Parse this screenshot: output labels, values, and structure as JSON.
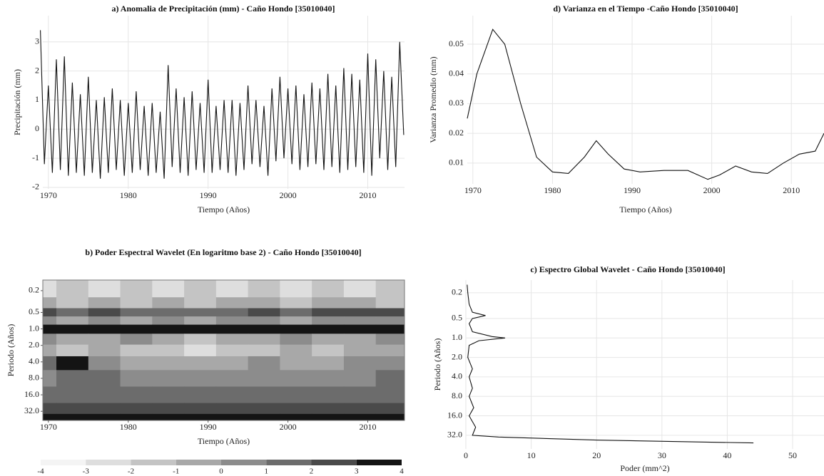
{
  "chart_data": [
    {
      "type": "line",
      "title": "a) Anomalia de Precipitación (mm) - Caño Hondo [35010040]",
      "xlabel": "Tiempo (Años)",
      "ylabel": "Precipitación (mm)",
      "color": "#111111",
      "grid": true,
      "xlim": [
        1969.3,
        2014.6
      ],
      "xticks": [
        1970,
        1980,
        1990,
        2000,
        2010
      ],
      "ylim": [
        -2.05,
        3.9
      ],
      "yticks": [
        -2,
        -1,
        0,
        1,
        2,
        3
      ],
      "x": [
        1969.0,
        1969.5,
        1970.0,
        1970.5,
        1971.0,
        1971.5,
        1972.0,
        1972.5,
        1973.0,
        1973.5,
        1974.0,
        1974.5,
        1975.0,
        1975.5,
        1976.0,
        1976.5,
        1977.0,
        1977.5,
        1978.0,
        1978.5,
        1979.0,
        1979.5,
        1980.0,
        1980.5,
        1981.0,
        1981.5,
        1982.0,
        1982.5,
        1983.0,
        1983.5,
        1984.0,
        1984.5,
        1985.0,
        1985.5,
        1986.0,
        1986.5,
        1987.0,
        1987.5,
        1988.0,
        1988.5,
        1989.0,
        1989.5,
        1990.0,
        1990.5,
        1991.0,
        1991.5,
        1992.0,
        1992.5,
        1993.0,
        1993.5,
        1994.0,
        1994.5,
        1995.0,
        1995.5,
        1996.0,
        1996.5,
        1997.0,
        1997.5,
        1998.0,
        1998.5,
        1999.0,
        1999.5,
        2000.0,
        2000.5,
        2001.0,
        2001.5,
        2002.0,
        2002.5,
        2003.0,
        2003.5,
        2004.0,
        2004.5,
        2005.0,
        2005.5,
        2006.0,
        2006.5,
        2007.0,
        2007.5,
        2008.0,
        2008.5,
        2009.0,
        2009.5,
        2010.0,
        2010.5,
        2011.0,
        2011.5,
        2012.0,
        2012.5,
        2013.0,
        2013.5,
        2014.0,
        2014.5
      ],
      "values": [
        3.4,
        -1.2,
        1.5,
        -1.5,
        2.4,
        -1.4,
        2.5,
        -1.6,
        1.6,
        -1.5,
        1.2,
        -1.6,
        1.8,
        -1.5,
        1.0,
        -1.7,
        1.1,
        -1.5,
        1.4,
        -1.4,
        1.0,
        -1.6,
        0.9,
        -1.5,
        1.3,
        -1.4,
        0.8,
        -1.6,
        0.9,
        -1.5,
        0.6,
        -1.7,
        2.2,
        -1.3,
        1.4,
        -1.5,
        1.1,
        -1.6,
        1.3,
        -1.4,
        0.9,
        -1.5,
        1.7,
        -1.5,
        0.8,
        -1.4,
        1.0,
        -1.5,
        1.0,
        -1.6,
        0.9,
        -1.4,
        1.5,
        -1.2,
        1.0,
        -1.3,
        0.8,
        -1.6,
        1.4,
        -1.1,
        1.8,
        -1.0,
        1.4,
        -1.2,
        1.5,
        -1.4,
        1.2,
        -1.3,
        1.6,
        -1.2,
        1.4,
        -1.4,
        1.9,
        -1.3,
        1.5,
        -1.5,
        2.1,
        -1.4,
        1.9,
        -1.3,
        1.7,
        -1.5,
        2.6,
        -1.6,
        2.4,
        -1.0,
        2.0,
        -1.4,
        1.8,
        -1.3,
        3.0,
        -0.2
      ]
    },
    {
      "type": "line",
      "title": "d) Varianza en el Tiempo -Caño Hondo [35010040]",
      "xlabel": "Tiempo (Años)",
      "ylabel": "Varianza Promedio (mm)",
      "color": "#111111",
      "grid": true,
      "xlim": [
        1969.3,
        2014.1
      ],
      "xticks": [
        1970,
        1980,
        1990,
        2000,
        2010
      ],
      "ylim": [
        0.003,
        0.0596
      ],
      "yticks": [
        0.01,
        0.02,
        0.03,
        0.04,
        0.05
      ],
      "x": [
        1969.3,
        1970.5,
        1972.5,
        1974,
        1976,
        1978,
        1980,
        1982,
        1984,
        1985.5,
        1987,
        1989,
        1991,
        1994,
        1997,
        1999.5,
        2001,
        2003,
        2005,
        2007,
        2009,
        2011,
        2013,
        2014.1
      ],
      "values": [
        0.025,
        0.04,
        0.055,
        0.05,
        0.03,
        0.012,
        0.007,
        0.0065,
        0.012,
        0.0175,
        0.013,
        0.008,
        0.007,
        0.0075,
        0.0075,
        0.0045,
        0.006,
        0.009,
        0.007,
        0.0065,
        0.01,
        0.013,
        0.014,
        0.02
      ]
    },
    {
      "type": "heatmap",
      "title": "b) Poder Espectral Wavelet (En logaritmo base 2) - Caño Hondo [35010040]",
      "xlabel": "Tiempo (Años)",
      "ylabel": "Periodo (Años)",
      "ylog": true,
      "yreverse": true,
      "xlim": [
        1969.3,
        2014.6
      ],
      "xticks": [
        1970,
        1980,
        1990,
        2000,
        2010
      ],
      "ylim": [
        0.128,
        47
      ],
      "yticks": [
        0.2,
        0.5,
        {
          "value": 1,
          "label": "1.0"
        },
        {
          "value": 2,
          "label": "2.0"
        },
        {
          "value": 4,
          "label": "4.0"
        },
        {
          "value": 8,
          "label": "8.0"
        },
        {
          "value": 16,
          "label": "16.0"
        },
        {
          "value": 32,
          "label": "32.0"
        }
      ],
      "x": [
        1969,
        1973,
        1977,
        1981,
        1985,
        1989,
        1993,
        1997,
        2001,
        2005,
        2009,
        2013
      ],
      "y": [
        0.2,
        0.35,
        0.5,
        0.7,
        1,
        1.5,
        2.5,
        4,
        8,
        16,
        32,
        40
      ],
      "z": [
        [
          -3,
          -2,
          -3,
          -2,
          -3,
          -2,
          -3,
          -2,
          -3,
          -2,
          -3,
          -2
        ],
        [
          -1,
          -2,
          -1,
          -2,
          -1,
          -2,
          -1,
          -1,
          -2,
          -1,
          -1,
          -2
        ],
        [
          2,
          1,
          2,
          1,
          1,
          1,
          1,
          2,
          1,
          2,
          2,
          2
        ],
        [
          0,
          -1,
          0,
          -1,
          0,
          -1,
          0,
          0,
          -1,
          0,
          0,
          0
        ],
        [
          3,
          3,
          3,
          3,
          3,
          3,
          3,
          3,
          3,
          3,
          3,
          3
        ],
        [
          0,
          -1,
          -1,
          0,
          -1,
          -2,
          -1,
          -1,
          0,
          -1,
          -1,
          0
        ],
        [
          -1,
          -2,
          -1,
          -2,
          -2,
          -3,
          -2,
          -2,
          -1,
          -2,
          -1,
          -1
        ],
        [
          1,
          3,
          0,
          -1,
          -1,
          -1,
          -1,
          0,
          -1,
          -1,
          0,
          0
        ],
        [
          0,
          1,
          1,
          0,
          0,
          0,
          0,
          0,
          0,
          0,
          0,
          1
        ],
        [
          1,
          1,
          1,
          1,
          1,
          1,
          1,
          1,
          1,
          1,
          1,
          1
        ],
        [
          2,
          2,
          2,
          2,
          2,
          2,
          2,
          2,
          2,
          2,
          2,
          2
        ],
        [
          4,
          4,
          4,
          4,
          4,
          4,
          4,
          4,
          4,
          4,
          4,
          4
        ]
      ],
      "colorbar_ticks": [
        -4,
        -3,
        -2,
        -1,
        0,
        1,
        2,
        3,
        4
      ],
      "colormap": [
        "#f4f4f4",
        "#dedede",
        "#c4c4c4",
        "#a8a8a8",
        "#8c8c8c",
        "#6c6c6c",
        "#4a4a4a",
        "#141414"
      ]
    },
    {
      "type": "profile",
      "title": "c) Espectro Global Wavelet - Caño Hondo [35010040]",
      "xlabel": "Poder (mm^2)",
      "ylabel": "Periodo (Años)",
      "color": "#111111",
      "grid": true,
      "ylog": true,
      "yreverse": true,
      "xlim": [
        0,
        54.8
      ],
      "xticks": [
        0,
        10,
        20,
        30,
        40,
        50
      ],
      "ylim": [
        0.127,
        52
      ],
      "yticks": [
        0.2,
        0.5,
        {
          "value": 1,
          "label": "1.0"
        },
        {
          "value": 2,
          "label": "2.0"
        },
        {
          "value": 4,
          "label": "4.0"
        },
        {
          "value": 8,
          "label": "8.0"
        },
        {
          "value": 16,
          "label": "16.0"
        },
        {
          "value": 32,
          "label": "32.0"
        }
      ],
      "periods": [
        0.15,
        0.2,
        0.3,
        0.4,
        0.45,
        0.5,
        0.6,
        0.8,
        0.95,
        1.0,
        1.1,
        1.3,
        2,
        3,
        4,
        6,
        8,
        12,
        16,
        24,
        32,
        34,
        38,
        42
      ],
      "values": [
        0.2,
        0.3,
        0.5,
        1,
        3,
        1,
        0.5,
        1,
        4,
        6,
        2,
        0.5,
        0.3,
        1,
        0.5,
        1,
        0.5,
        1.2,
        0.5,
        1.5,
        1,
        5,
        20,
        44
      ]
    }
  ]
}
